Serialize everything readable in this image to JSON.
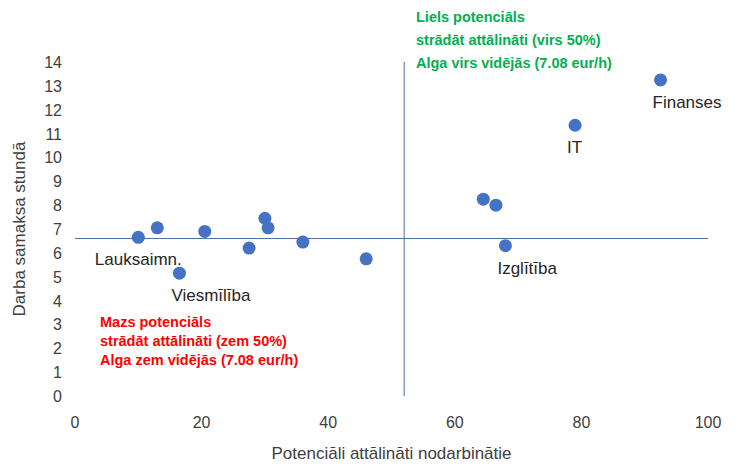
{
  "chart_data": {
    "type": "scatter",
    "x_label": "Potenciāli attālināti nodarbinātie",
    "y_label": "Darba samaksa stundā",
    "x": [
      10,
      13,
      16.5,
      20.5,
      27.5,
      30,
      30.5,
      36,
      46,
      64.5,
      66.5,
      68,
      79,
      92.5
    ],
    "values": [
      6.65,
      7.05,
      5.15,
      6.9,
      6.2,
      7.45,
      7.05,
      6.45,
      5.75,
      8.25,
      8.0,
      6.3,
      11.35,
      13.25
    ],
    "labels": [
      "Lauksaimn.",
      null,
      "Viesmīlība",
      null,
      null,
      null,
      null,
      null,
      null,
      null,
      null,
      "Izglītība",
      "IT",
      "Finanses"
    ],
    "color": "#4472c4",
    "marker": "circle",
    "grid": false,
    "xlim": [
      0,
      100
    ],
    "xticks": [
      0,
      20,
      40,
      60,
      80,
      100
    ],
    "ylim": [
      0,
      14
    ],
    "yticks": [
      0,
      1,
      2,
      3,
      4,
      5,
      6,
      7,
      8,
      9,
      10,
      11,
      12,
      13,
      14
    ],
    "reference_lines": [
      {
        "axis": "y",
        "value": 6.6,
        "color": "#4a6fa5"
      },
      {
        "axis": "x",
        "value": 52,
        "color": "#4a6fa5"
      }
    ],
    "annotations": [
      {
        "lines": [
          "Liels potenciāls",
          "strādāt attālināti (virs 50%)",
          "Alga virs vidējās (7.08 eur/h)"
        ],
        "color": "#00b050"
      },
      {
        "lines": [
          "Mazs potenciāls",
          "strādāt attālināti (zem 50%)",
          "Alga zem vidējās (7.08 eur/h)"
        ],
        "color": "#ff0000"
      }
    ]
  }
}
